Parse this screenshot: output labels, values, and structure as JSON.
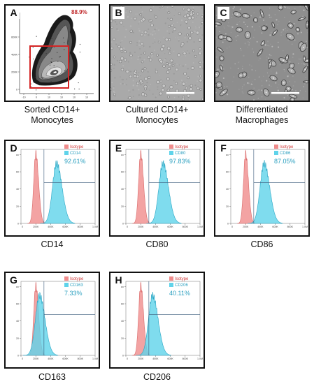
{
  "panels": {
    "A": {
      "letter": "A",
      "percent": "88.9%",
      "caption_line1": "Sorted CD14+",
      "caption_line2": "Monocytes"
    },
    "B": {
      "letter": "B",
      "caption_line1": "Cultured CD14+",
      "caption_line2": "Monocytes"
    },
    "C": {
      "letter": "C",
      "caption_line1": "Differentiated",
      "caption_line2": "Macrophages"
    },
    "D": {
      "letter": "D",
      "isotype": "Isotype",
      "marker": "CD14",
      "percent": "92.61%",
      "caption": "CD14",
      "peak_marker": 480
    },
    "E": {
      "letter": "E",
      "isotype": "Isotype",
      "marker": "CD80",
      "percent": "97.83%",
      "caption": "CD80",
      "peak_marker": 500
    },
    "F": {
      "letter": "F",
      "isotype": "Isotype",
      "marker": "CD86",
      "percent": "87.05%",
      "caption": "CD86",
      "peak_marker": 450
    },
    "G": {
      "letter": "G",
      "isotype": "Isotype",
      "marker": "CD163",
      "percent": "7.33%",
      "caption": "CD163",
      "peak_marker": 250
    },
    "H": {
      "letter": "H",
      "isotype": "Isotype",
      "marker": "CD206",
      "percent": "40.11%",
      "caption": "CD206",
      "peak_marker": 360
    }
  },
  "histogram_axis": {
    "x_ticks": [
      "0",
      "200K",
      "400K",
      "600K",
      "800K",
      "1.0M"
    ],
    "y_ticks": [
      "0",
      "20",
      "40",
      "60",
      "80"
    ]
  },
  "density_axis": {
    "y_ticks": [
      "0",
      "200K",
      "400K",
      "600K"
    ],
    "x_ticks": [
      "-10",
      "0",
      "10",
      "10",
      "10",
      "10"
    ]
  },
  "colors": {
    "isotype": "#f08c8c",
    "marker": "#5fd3ea",
    "gate": "#d42424"
  }
}
